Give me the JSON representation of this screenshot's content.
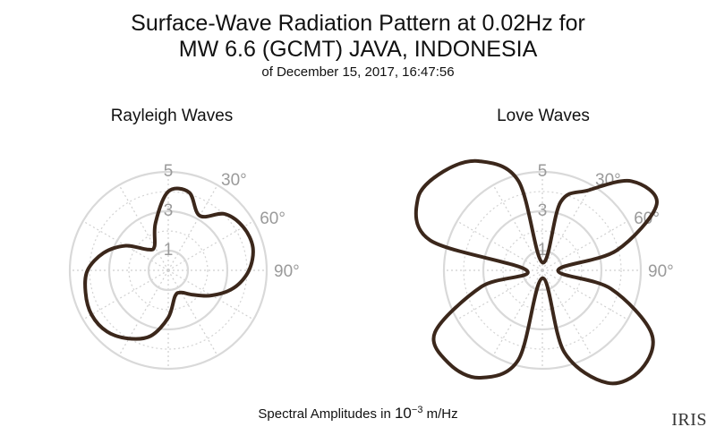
{
  "title": {
    "line1": "Surface-Wave Radiation Pattern at 0.02Hz for",
    "line2": "MW 6.6 (GCMT) JAVA, INDONESIA",
    "subtitle": "of December 15, 2017, 16:47:56"
  },
  "footer": {
    "prefix": "Spectral Amplitudes in ",
    "base": "10",
    "exponent": "−3",
    "unit": " m/Hz"
  },
  "logo": {
    "text": "IRIS"
  },
  "colors": {
    "pattern": "#3b271b",
    "grid": "#d9d9d9",
    "tick_labels": "#9a9a9a"
  },
  "chart_data": [
    {
      "type": "polar",
      "title": "Rayleigh Waves",
      "r_ticks": [
        "1",
        "3",
        "5"
      ],
      "r_max": 5,
      "angle_ticks": [
        "30°",
        "60°",
        "90°"
      ],
      "grid": true,
      "series": [
        {
          "theta_deg": [
            0,
            15,
            30,
            45,
            60,
            75,
            90,
            105,
            120,
            135,
            150,
            165,
            180,
            195,
            210,
            225,
            240,
            255,
            270,
            285,
            300,
            315,
            330,
            345
          ],
          "r": [
            4.0,
            4.1,
            3.2,
            4.05,
            4.4,
            4.45,
            4.1,
            3.45,
            2.55,
            1.75,
            1.3,
            1.35,
            2.4,
            3.45,
            4.0,
            4.4,
            4.5,
            4.35,
            4.1,
            3.4,
            2.5,
            1.5,
            1.4,
            2.5
          ]
        }
      ]
    },
    {
      "type": "polar",
      "title": "Love Waves",
      "r_ticks": [
        "1",
        "3",
        "5"
      ],
      "r_max": 5,
      "angle_ticks": [
        "30°",
        "60°",
        "90°"
      ],
      "grid": true,
      "series": [
        {
          "theta_deg": [
            0,
            15,
            30,
            45,
            60,
            75,
            90,
            105,
            120,
            135,
            150,
            165,
            180,
            195,
            210,
            225,
            240,
            255,
            270,
            285,
            300,
            315,
            330,
            345
          ],
          "r": [
            0.4,
            3.6,
            4.7,
            6.4,
            6.7,
            3.9,
            0.8,
            3.6,
            6.4,
            7.1,
            6.6,
            4.3,
            0.4,
            4.7,
            6.3,
            6.7,
            6.3,
            3.2,
            0.8,
            5.9,
            7.3,
            7.1,
            6.4,
            4.7
          ]
        }
      ]
    }
  ]
}
